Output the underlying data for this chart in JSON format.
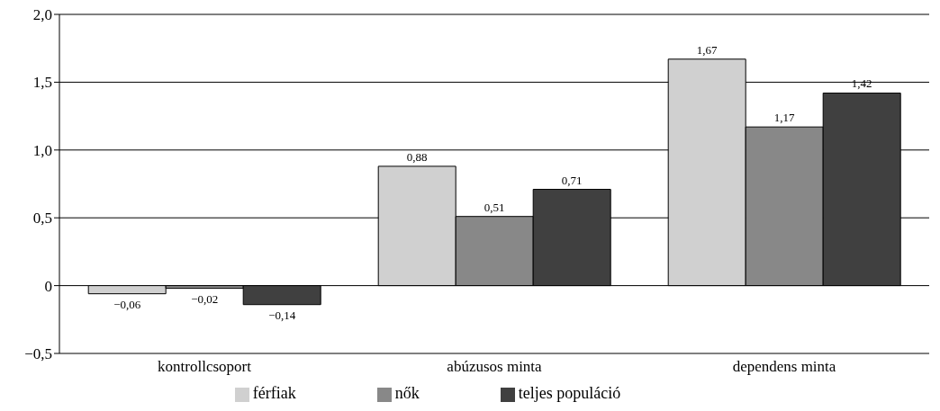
{
  "chart_data": {
    "type": "bar",
    "categories": [
      "kontrollcsoport",
      "abúzusos minta",
      "dependens minta"
    ],
    "series": [
      {
        "name": "férfiak",
        "color": "#d0d0d0",
        "values": [
          -0.06,
          0.88,
          1.67
        ],
        "value_labels": [
          "−0,06",
          "0,88",
          "1,67"
        ]
      },
      {
        "name": "nők",
        "color": "#888888",
        "values": [
          -0.02,
          0.51,
          1.17
        ],
        "value_labels": [
          "−0,02",
          "0,51",
          "1,17"
        ]
      },
      {
        "name": "teljes populáció",
        "color": "#404040",
        "values": [
          -0.14,
          0.71,
          1.42
        ],
        "value_labels": [
          "−0,14",
          "0,71",
          "1,42"
        ]
      }
    ],
    "ylim": [
      -0.5,
      2
    ],
    "yticks": [
      {
        "value": -0.5,
        "label": "−0,5"
      },
      0,
      {
        "value": 0.5,
        "label": "0,5"
      },
      {
        "value": 1,
        "label": "1,0"
      },
      {
        "value": 1.5,
        "label": "1,5"
      },
      {
        "value": 2,
        "label": "2,0"
      }
    ],
    "grid": "y",
    "legend": "bottom"
  }
}
